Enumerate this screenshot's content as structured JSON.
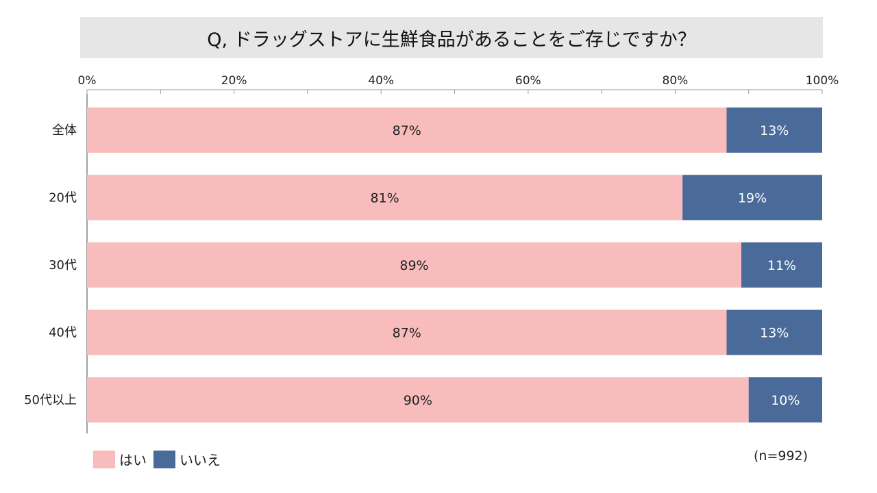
{
  "title": "Q, ドラッグストアに生鮮食品があることをご存じですか？",
  "note": "(n=992)",
  "chart_data": {
    "type": "bar",
    "orientation": "horizontal",
    "stacked": true,
    "categories": [
      "全体",
      "20代",
      "30代",
      "40代",
      "50代以上"
    ],
    "series": [
      {
        "name": "はい",
        "values": [
          87,
          81,
          89,
          87,
          90
        ],
        "color": "#f8bcbc",
        "label_color": "#222222"
      },
      {
        "name": "いいえ",
        "values": [
          13,
          19,
          11,
          13,
          10
        ],
        "color": "#4a6a9a",
        "label_color": "#ffffff"
      }
    ],
    "xlim": [
      0,
      100
    ],
    "ticks": [
      "0%",
      "20%",
      "40%",
      "60%",
      "80%",
      "100%"
    ],
    "value_suffix": "%",
    "legend_position": "bottom-left",
    "grid": false
  }
}
